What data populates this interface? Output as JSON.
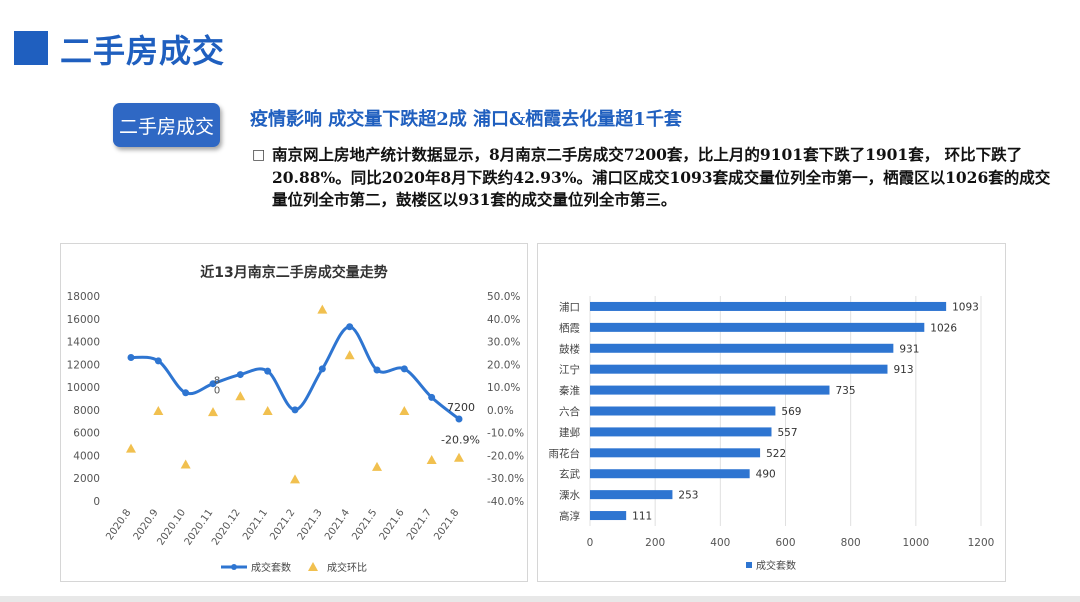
{
  "page": {
    "title": "二手房成交"
  },
  "tag": {
    "label": "二手房成交"
  },
  "headline": "疫情影响  成交量下跌超2成   浦口&栖霞去化量超1千套",
  "bullet": "",
  "paragraph": "南京网上房地产统计数据显示，8月南京二手房成交7200套，比上月的9101套下跌了1901套， 环比下跌了20.88%。同比2020年8月下跌约42.93%。浦口区成交1093套成交量位列全市第一，栖霞区以1026套的成交量位列全市第二，鼓楼区以931套的成交量位列全市第三。",
  "colors": {
    "accent": "#1f5fbf",
    "line": "#2e75d1",
    "triangle": "#f1c04f",
    "bar": "#2e75d1"
  },
  "chart_data": [
    {
      "type": "line",
      "title": "近13月南京二手房成交量走势",
      "categories": [
        "2020.8",
        "2020.9",
        "2020.10",
        "2020.11",
        "2020.12",
        "2021.1",
        "2021.2",
        "2021.3",
        "2021.4",
        "2021.5",
        "2021.6",
        "2021.7",
        "2021.8"
      ],
      "series": [
        {
          "name": "成交套数",
          "axis": "left",
          "style": "line-marker",
          "values": [
            12600,
            12300,
            9500,
            10300,
            11100,
            11400,
            8000,
            11600,
            15300,
            11500,
            11600,
            9100,
            7200
          ]
        },
        {
          "name": "成交环比",
          "axis": "right",
          "style": "triangle",
          "values": [
            -17,
            -0.5,
            -24,
            -1,
            6,
            -0.5,
            -30.5,
            44,
            24,
            -25,
            -0.5,
            -22,
            -21
          ]
        }
      ],
      "ylim_left": [
        0,
        18000
      ],
      "yticks_left": [
        "0",
        "2000",
        "4000",
        "6000",
        "8000",
        "10000",
        "12000",
        "14000",
        "16000",
        "18000"
      ],
      "ylim_right": [
        -40,
        50
      ],
      "yticks_right": [
        "-40.0%",
        "-30.0%",
        "-20.0%",
        "-10.0%",
        "0.0%",
        "10.0%",
        "20.0%",
        "30.0%",
        "40.0%",
        "50.0%"
      ],
      "annotations": [
        {
          "text": "7200"
        },
        {
          "text": "-20.9%"
        },
        {
          "text": "8"
        },
        {
          "text": "0"
        }
      ],
      "legend": [
        "成交套数",
        "成交环比"
      ],
      "legend_position": "bottom",
      "grid": false
    },
    {
      "type": "bar",
      "orientation": "horizontal",
      "categories": [
        "浦口",
        "栖霞",
        "鼓楼",
        "江宁",
        "秦淮",
        "六合",
        "建邺",
        "雨花台",
        "玄武",
        "溧水",
        "高淳"
      ],
      "values": [
        1093,
        1026,
        931,
        913,
        735,
        569,
        557,
        522,
        490,
        253,
        111
      ],
      "series_name": "成交套数",
      "xlim": [
        0,
        1200
      ],
      "xticks": [
        "0",
        "200",
        "400",
        "600",
        "800",
        "1000",
        "1200"
      ],
      "legend_position": "bottom",
      "grid": true
    }
  ]
}
